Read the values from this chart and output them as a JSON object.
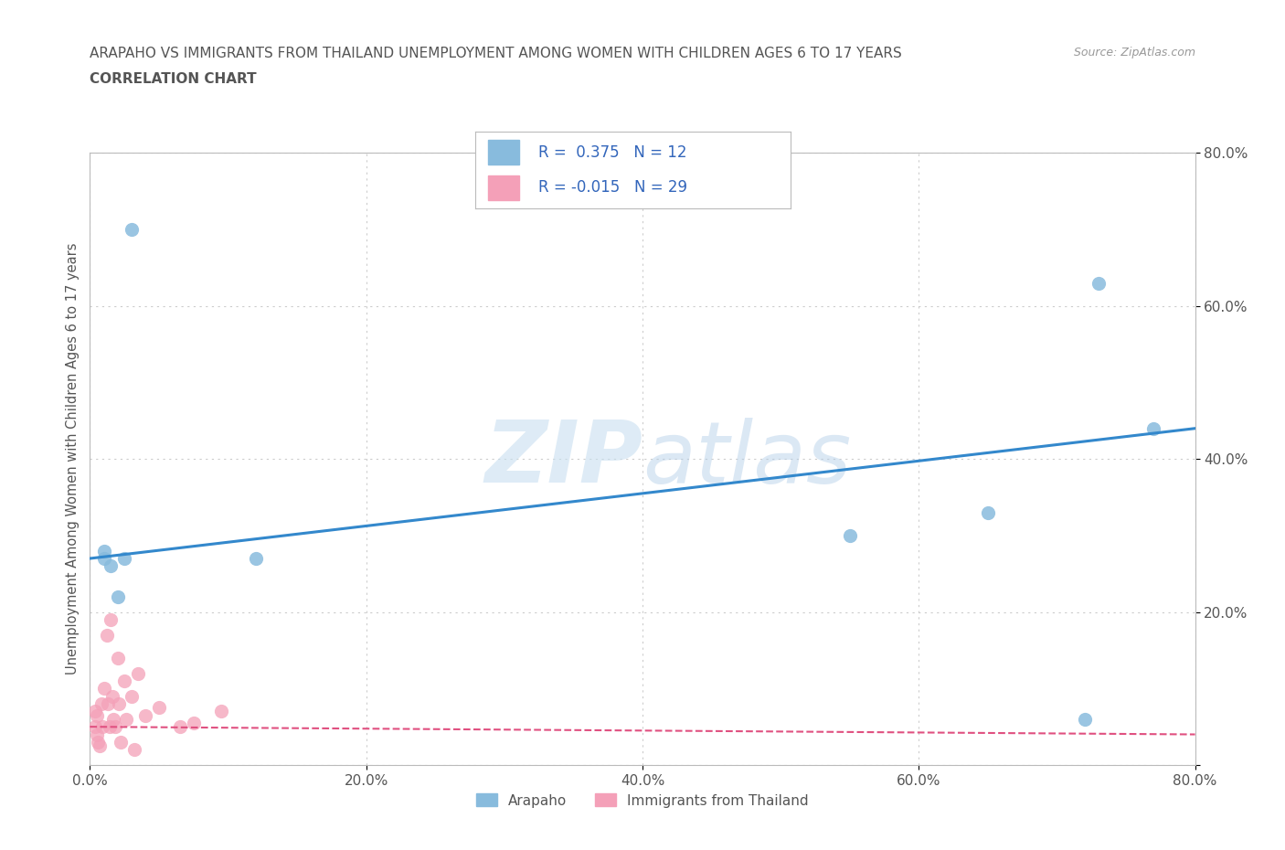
{
  "title_line1": "ARAPAHO VS IMMIGRANTS FROM THAILAND UNEMPLOYMENT AMONG WOMEN WITH CHILDREN AGES 6 TO 17 YEARS",
  "title_line2": "CORRELATION CHART",
  "source": "Source: ZipAtlas.com",
  "ylabel": "Unemployment Among Women with Children Ages 6 to 17 years",
  "xlim": [
    0.0,
    0.8
  ],
  "ylim": [
    0.0,
    0.8
  ],
  "xticks": [
    0.0,
    0.2,
    0.4,
    0.6,
    0.8
  ],
  "yticks": [
    0.0,
    0.2,
    0.4,
    0.6,
    0.8
  ],
  "watermark_text": "ZIPatlas",
  "arapaho_color": "#88bbdd",
  "thailand_color": "#f4a0b8",
  "arapaho_line_color": "#3388cc",
  "thailand_line_color": "#e05080",
  "R_arapaho": "0.375",
  "N_arapaho": "12",
  "R_thailand": "-0.015",
  "N_thailand": "29",
  "arapaho_x": [
    0.01,
    0.015,
    0.02,
    0.025,
    0.03,
    0.01,
    0.12,
    0.55,
    0.65,
    0.72,
    0.73,
    0.77
  ],
  "arapaho_y": [
    0.28,
    0.26,
    0.22,
    0.27,
    0.7,
    0.27,
    0.27,
    0.3,
    0.33,
    0.06,
    0.63,
    0.44
  ],
  "thailand_x": [
    0.004,
    0.004,
    0.005,
    0.005,
    0.006,
    0.007,
    0.008,
    0.009,
    0.01,
    0.012,
    0.013,
    0.014,
    0.015,
    0.016,
    0.017,
    0.018,
    0.02,
    0.021,
    0.022,
    0.025,
    0.026,
    0.03,
    0.032,
    0.035,
    0.04,
    0.05,
    0.065,
    0.075,
    0.095
  ],
  "thailand_y": [
    0.07,
    0.05,
    0.065,
    0.04,
    0.03,
    0.025,
    0.08,
    0.05,
    0.1,
    0.17,
    0.08,
    0.05,
    0.19,
    0.09,
    0.06,
    0.05,
    0.14,
    0.08,
    0.03,
    0.11,
    0.06,
    0.09,
    0.02,
    0.12,
    0.065,
    0.075,
    0.05,
    0.055,
    0.07
  ],
  "background_color": "#ffffff",
  "grid_color": "#cccccc",
  "title_color": "#555555",
  "axis_color": "#bbbbbb",
  "legend_label1": "Arapaho",
  "legend_label2": "Immigrants from Thailand"
}
